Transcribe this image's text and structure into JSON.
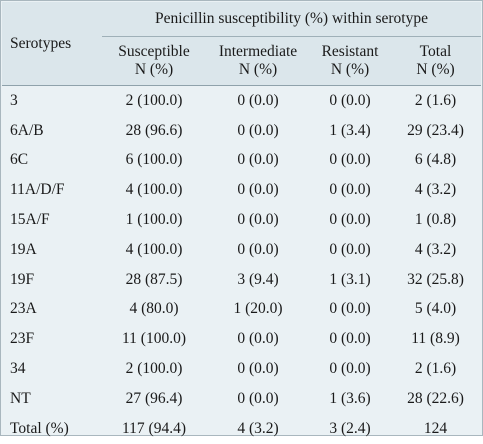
{
  "table": {
    "header": {
      "serotypes": "Serotypes",
      "group": "Penicillin susceptibility (%) within serotype",
      "columns": [
        {
          "line1": "Susceptible",
          "line2": "N (%)"
        },
        {
          "line1": "Intermediate",
          "line2": "N (%)"
        },
        {
          "line1": "Resistant",
          "line2": "N (%)"
        },
        {
          "line1": "Total",
          "line2": "N (%)"
        }
      ]
    },
    "rows": [
      {
        "serotype": "3",
        "susceptible": "2 (100.0)",
        "intermediate": "0 (0.0)",
        "resistant": "0 (0.0)",
        "total": "2 (1.6)"
      },
      {
        "serotype": "6A/B",
        "susceptible": "28 (96.6)",
        "intermediate": "0 (0.0)",
        "resistant": "1 (3.4)",
        "total": "29 (23.4)"
      },
      {
        "serotype": "6C",
        "susceptible": "6 (100.0)",
        "intermediate": "0 (0.0)",
        "resistant": "0 (0.0)",
        "total": "6 (4.8)"
      },
      {
        "serotype": "11A/D/F",
        "susceptible": "4 (100.0)",
        "intermediate": "0 (0.0)",
        "resistant": "0 (0.0)",
        "total": "4 (3.2)"
      },
      {
        "serotype": "15A/F",
        "susceptible": "1 (100.0)",
        "intermediate": "0 (0.0)",
        "resistant": "0 (0.0)",
        "total": "1 (0.8)"
      },
      {
        "serotype": "19A",
        "susceptible": "4 (100.0)",
        "intermediate": "0 (0.0)",
        "resistant": "0 (0.0)",
        "total": "4 (3.2)"
      },
      {
        "serotype": "19F",
        "susceptible": "28 (87.5)",
        "intermediate": "3 (9.4)",
        "resistant": "1 (3.1)",
        "total": "32 (25.8)"
      },
      {
        "serotype": "23A",
        "susceptible": "4 (80.0)",
        "intermediate": "1 (20.0)",
        "resistant": "0 (0.0)",
        "total": "5 (4.0)"
      },
      {
        "serotype": "23F",
        "susceptible": "11 (100.0)",
        "intermediate": "0 (0.0)",
        "resistant": "0 (0.0)",
        "total": "11 (8.9)"
      },
      {
        "serotype": "34",
        "susceptible": "2 (100.0)",
        "intermediate": "0 (0.0)",
        "resistant": "0 (0.0)",
        "total": "2 (1.6)"
      },
      {
        "serotype": "NT",
        "susceptible": "27 (96.4)",
        "intermediate": "0 (0.0)",
        "resistant": "1 (3.6)",
        "total": "28 (22.6)"
      },
      {
        "serotype": "Total (%)",
        "susceptible": "117 (94.4)",
        "intermediate": "4 (3.2)",
        "resistant": "3 (2.4)",
        "total": "124"
      }
    ]
  },
  "colors": {
    "header_bg": "#dbe6eb",
    "body_bg": "#eaf1f4",
    "rule": "#8fa2ab"
  }
}
